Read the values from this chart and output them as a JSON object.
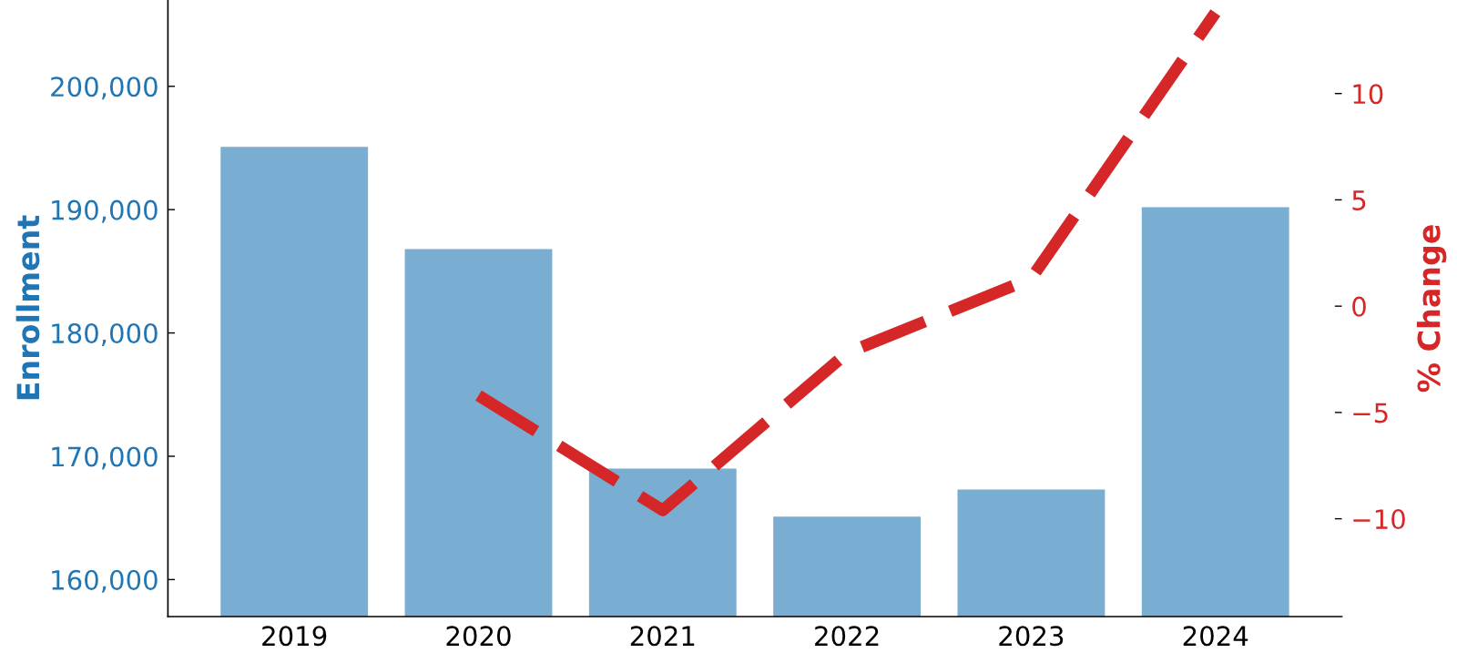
{
  "chart_data": {
    "type": "bar",
    "categories": [
      "2019",
      "2020",
      "2021",
      "2022",
      "2023",
      "2024"
    ],
    "ylabel": "Enrollment",
    "y2label": "% Change",
    "series": [
      {
        "color": "#79add2",
        "values": [
          195100,
          186800,
          169000,
          165100,
          167300,
          190200
        ]
      },
      {
        "type": "line",
        "axis": "y2",
        "color": "#d62728",
        "values": [
          null,
          -4.2,
          -9.6,
          -2.2,
          1.3,
          13.8
        ]
      }
    ],
    "ylim": [
      157000,
      207000
    ],
    "yticks": [
      {
        "value": 160000,
        "label": "160,000"
      },
      {
        "value": 170000,
        "label": "170,000"
      },
      {
        "value": 180000,
        "label": "180,000"
      },
      {
        "value": 190000,
        "label": "190,000"
      },
      {
        "value": 200000,
        "label": "200,000"
      }
    ],
    "y2lim": [
      -14.6,
      14.4
    ],
    "y2ticks": [
      {
        "value": -10,
        "label": "−10"
      },
      {
        "value": -5,
        "label": "−5"
      },
      0,
      5,
      10
    ],
    "line_style": "dashed",
    "grid": false
  }
}
